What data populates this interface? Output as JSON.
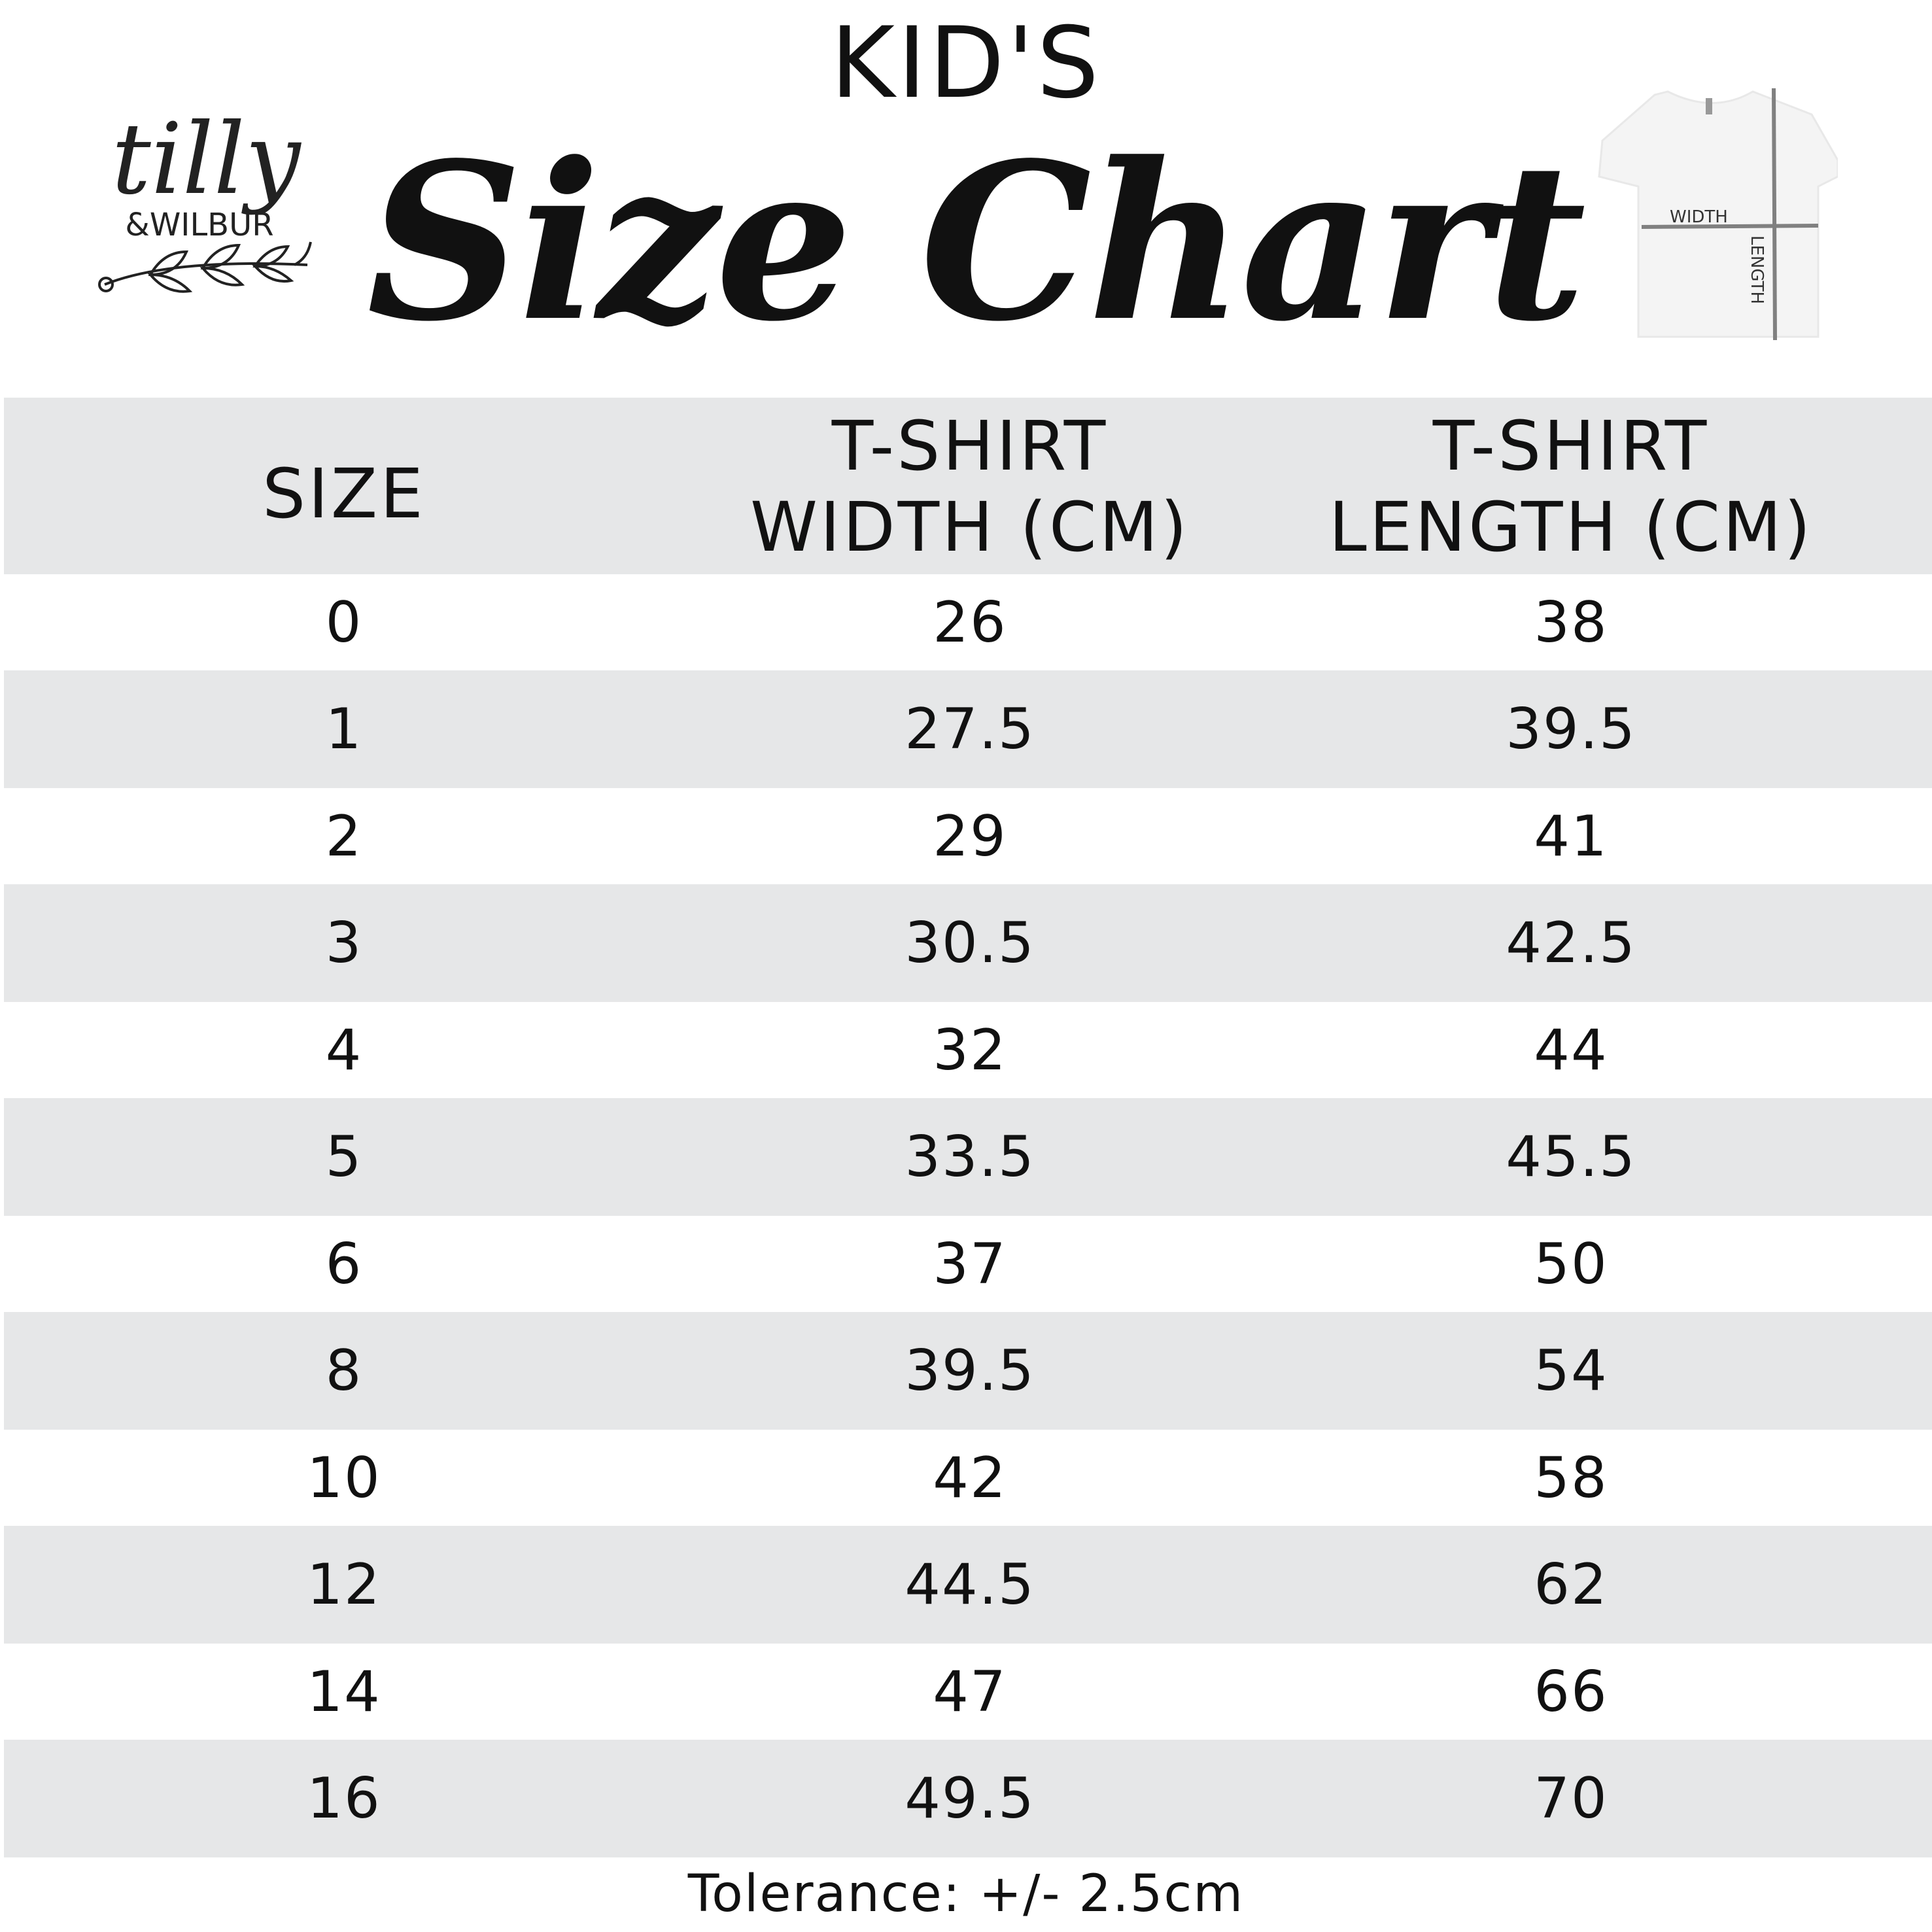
{
  "header": {
    "subtitle": "KID'S",
    "title": "Size Chart",
    "logo_text": "tilly &WILBUR",
    "diagram_labels": {
      "width": "WIDTH",
      "length": "LENGTH"
    }
  },
  "table": {
    "columns": [
      {
        "line1": "SIZE",
        "line2": ""
      },
      {
        "line1": "T-SHIRT",
        "line2": "WIDTH (CM)"
      },
      {
        "line1": "T-SHIRT",
        "line2": "LENGTH (CM)"
      }
    ],
    "rows": [
      [
        "0",
        "26",
        "38"
      ],
      [
        "1",
        "27.5",
        "39.5"
      ],
      [
        "2",
        "29",
        "41"
      ],
      [
        "3",
        "30.5",
        "42.5"
      ],
      [
        "4",
        "32",
        "44"
      ],
      [
        "5",
        "33.5",
        "45.5"
      ],
      [
        "6",
        "37",
        "50"
      ],
      [
        "8",
        "39.5",
        "54"
      ],
      [
        "10",
        "42",
        "58"
      ],
      [
        "12",
        "44.5",
        "62"
      ],
      [
        "14",
        "47",
        "66"
      ],
      [
        "16",
        "49.5",
        "70"
      ]
    ],
    "stripe_color": "#e6e7e8"
  },
  "footer": {
    "tolerance": "Tolerance: +/- 2.5cm"
  }
}
